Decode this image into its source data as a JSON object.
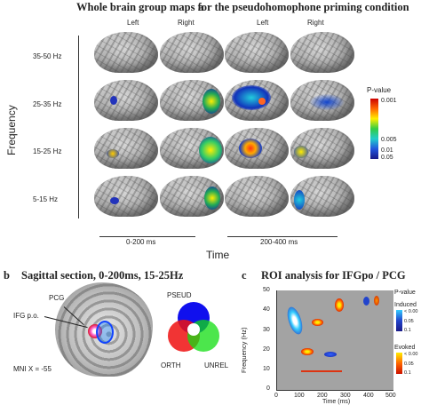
{
  "panel_a": {
    "letter": "a",
    "title": "Whole brain group maps for the pseudohomophone priming condition",
    "col_left": "Left",
    "col_right": "Right",
    "rows": [
      "35-50 Hz",
      "25-35 Hz",
      "15-25 Hz",
      "5-15 Hz"
    ],
    "ylabel": "Frequency",
    "xlabel": "Time",
    "time1": "0-200 ms",
    "time2": "200-400 ms",
    "colorbar": {
      "title": "P-value",
      "ticks": [
        "0.001",
        "0.005",
        "0.01",
        "0.05"
      ]
    }
  },
  "panel_b": {
    "letter": "b",
    "title": "Sagittal section, 0-200ms, 15-25Hz",
    "pcg": "PCG",
    "ifg": "IFG p.o.",
    "mni": "MNI X = -55",
    "venn": {
      "top": "PSEUD",
      "left": "ORTH",
      "right": "UNREL"
    }
  },
  "panel_c": {
    "letter": "c",
    "title": "ROI analysis for IFGpo / PCG",
    "pvalue": "P-value",
    "induced": "Induced",
    "induced_ticks": [
      "< 0.00",
      "0.05",
      "0.1"
    ],
    "evoked": "Evoked",
    "evoked_ticks": [
      "< 0.00",
      "0.05",
      "0.1"
    ],
    "ylabel": "Frequency (Hz)",
    "xlabel": "Time (ms)",
    "yticks": [
      "50",
      "40",
      "30",
      "20",
      "10",
      "0"
    ],
    "xticks": [
      "0",
      "100",
      "200",
      "300",
      "400",
      "500"
    ]
  }
}
